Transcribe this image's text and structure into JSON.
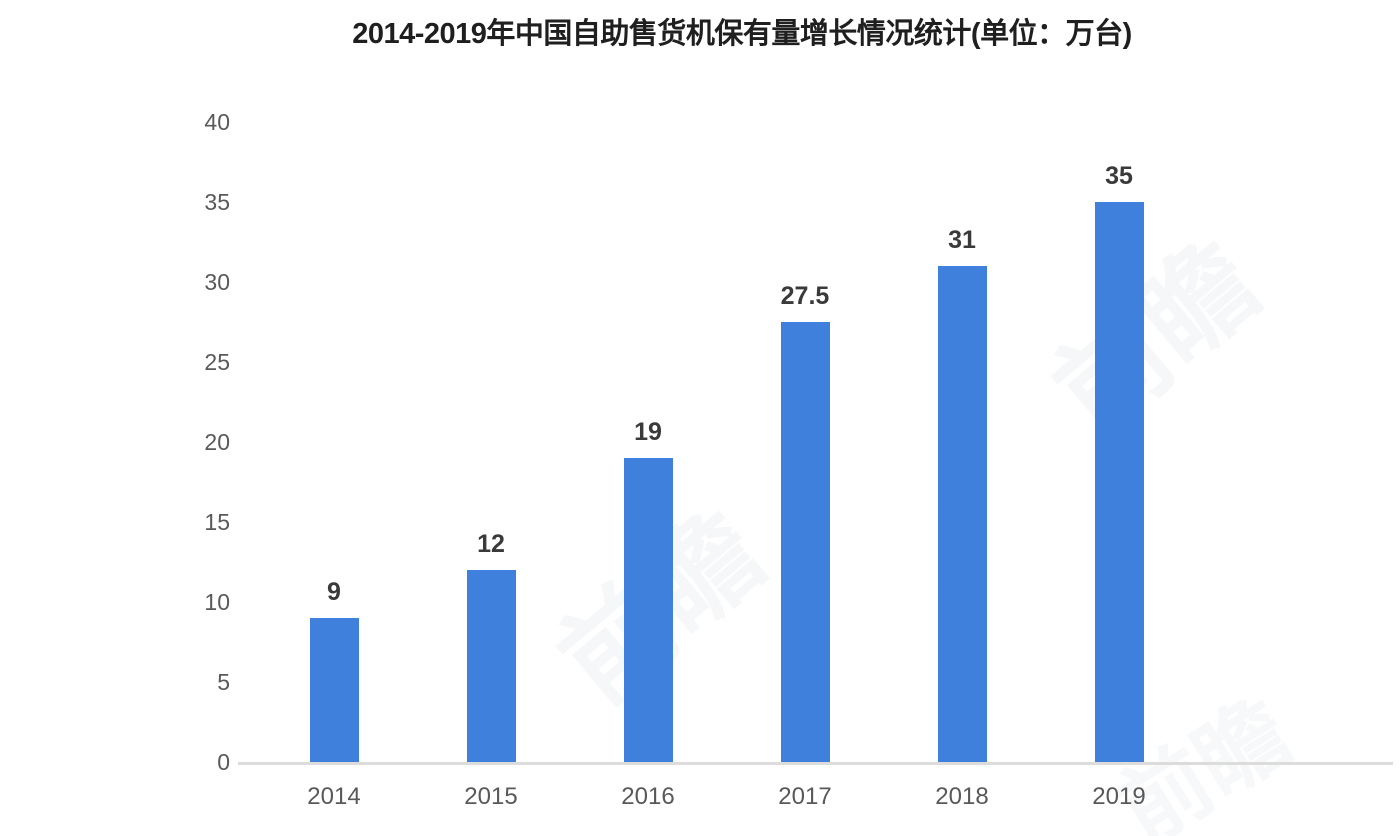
{
  "title": "2014-2019年中国自助售货机保有量增长情况统计(单位：万台)",
  "watermark": {
    "text": "前瞻"
  },
  "chart_data": {
    "type": "bar",
    "title": "2014-2019年中国自助售货机保有量增长情况统计(单位：万台)",
    "categories": [
      "2014",
      "2015",
      "2016",
      "2017",
      "2018",
      "2019"
    ],
    "values": [
      9,
      12,
      19,
      27.5,
      31,
      35
    ],
    "value_labels": [
      "9",
      "12",
      "19",
      "27.5",
      "31",
      "35"
    ],
    "xlabel": "",
    "ylabel": "",
    "ylim": [
      0,
      40
    ],
    "yticks": [
      0,
      5,
      10,
      15,
      20,
      25,
      30,
      35,
      40
    ],
    "grid": false,
    "legend": "none",
    "bar_color": "#3e80dc",
    "axis_line_color": "#dcdcdc",
    "tick_label_color": "#595959",
    "value_label_color": "#3a3a3a",
    "title_color": "#1f1f1f",
    "background_color": "#ffffff"
  }
}
